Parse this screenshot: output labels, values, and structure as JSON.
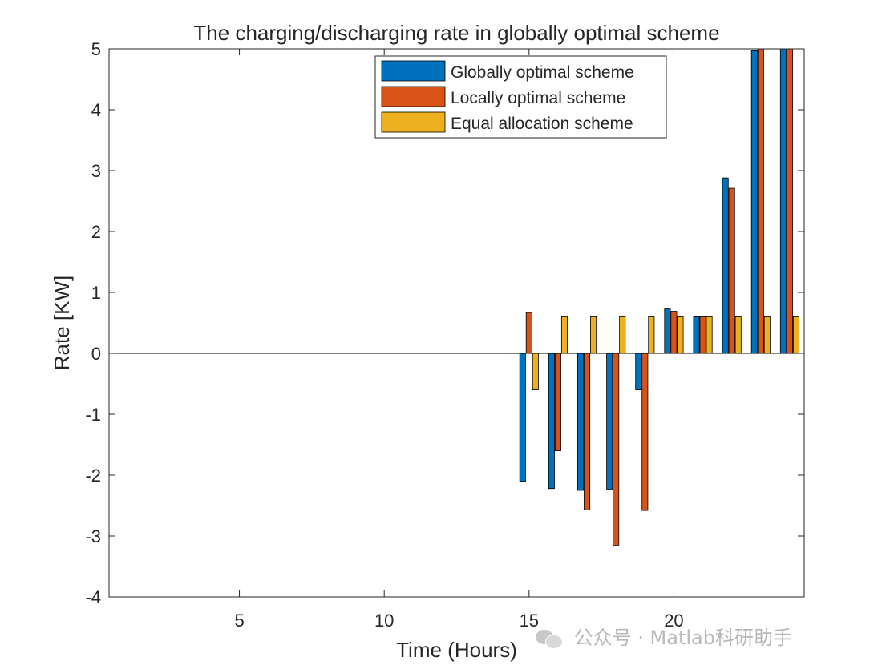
{
  "chart_data": {
    "type": "bar",
    "title": "The charging/discharging rate in globally optimal scheme",
    "xlabel": "Time (Hours)",
    "ylabel": "Rate [KW]",
    "xlim": [
      0.5,
      24.5
    ],
    "ylim": [
      -4,
      5
    ],
    "x_ticks": [
      5,
      10,
      15,
      20
    ],
    "y_ticks": [
      -4,
      -3,
      -2,
      -1,
      0,
      1,
      2,
      3,
      4,
      5
    ],
    "x_tick_labels": [
      "5",
      "10",
      "15",
      "20"
    ],
    "y_tick_labels": [
      "-4",
      "-3",
      "-2",
      "-1",
      "0",
      "1",
      "2",
      "3",
      "4",
      "5"
    ],
    "grid": false,
    "legend_position": "top-right",
    "x": [
      1,
      2,
      3,
      4,
      5,
      6,
      7,
      8,
      9,
      10,
      11,
      12,
      13,
      14,
      15,
      16,
      17,
      18,
      19,
      20,
      21,
      22,
      23,
      24
    ],
    "series": [
      {
        "name": "Globally optimal scheme",
        "color": "#0072BD",
        "values": [
          0,
          0,
          0,
          0,
          0,
          0,
          0,
          0,
          0,
          0,
          0,
          0,
          0,
          0,
          -2.1,
          -2.22,
          -2.25,
          -2.23,
          -0.6,
          0.73,
          0.6,
          2.88,
          4.97,
          5.0
        ]
      },
      {
        "name": "Locally optimal scheme",
        "color": "#D95319",
        "values": [
          0,
          0,
          0,
          0,
          0,
          0,
          0,
          0,
          0,
          0,
          0,
          0,
          0,
          0,
          0.67,
          -1.6,
          -2.57,
          -3.15,
          -2.58,
          0.69,
          0.6,
          2.71,
          5.0,
          5.0
        ]
      },
      {
        "name": "Equal allocation scheme",
        "color": "#EDB120",
        "values": [
          0,
          0,
          0,
          0,
          0,
          0,
          0,
          0,
          0,
          0,
          0,
          0,
          0,
          0,
          -0.6,
          0.6,
          0.6,
          0.6,
          0.6,
          0.6,
          0.6,
          0.6,
          0.6,
          0.6
        ]
      }
    ]
  },
  "watermark": {
    "icon": "wechat-icon",
    "text": "公众号 · Matlab科研助手"
  }
}
